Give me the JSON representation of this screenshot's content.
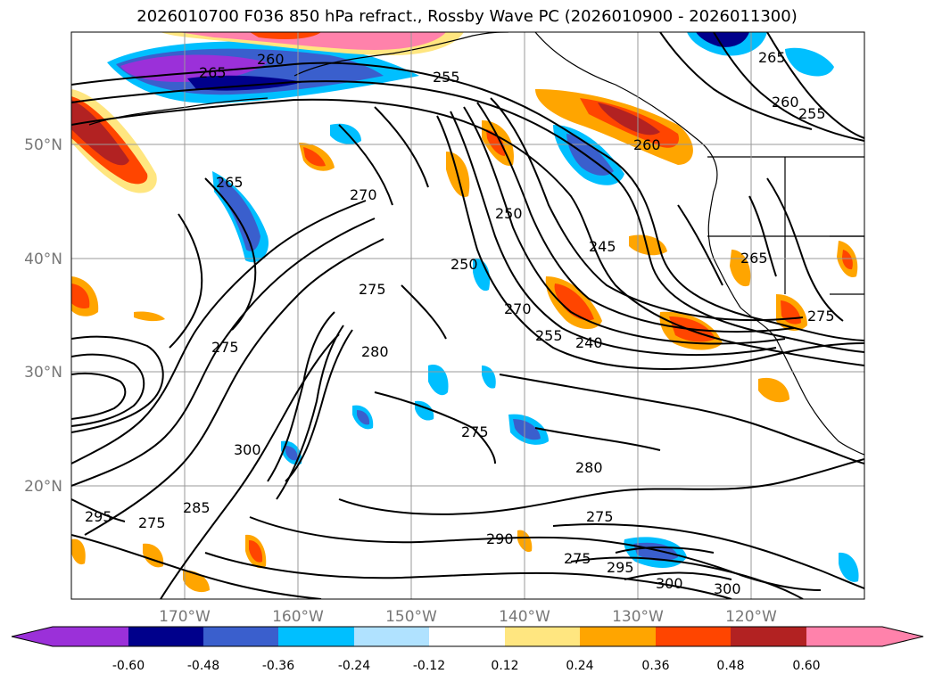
{
  "title": "2026010700 F036 850 hPa refract., Rossby Wave PC (2026010900 - 2026011300)",
  "map": {
    "lon_labels": [
      "170°W",
      "160°W",
      "150°W",
      "140°W",
      "130°W",
      "120°W"
    ],
    "lat_labels": [
      "50°N",
      "40°N",
      "30°N",
      "20°N"
    ],
    "contour_labels": [
      "265",
      "260",
      "255",
      "265",
      "260",
      "255",
      "270",
      "265",
      "250",
      "245",
      "250",
      "275",
      "280",
      "275",
      "270",
      "255",
      "240",
      "275",
      "280",
      "275",
      "300",
      "290",
      "275",
      "295",
      "300",
      "300",
      "295",
      "275",
      "285",
      "260",
      "265",
      "275"
    ]
  },
  "colorbar": {
    "tick_labels": [
      "-0.60",
      "-0.48",
      "-0.36",
      "-0.24",
      "-0.12",
      "0.12",
      "0.24",
      "0.36",
      "0.48",
      "0.60"
    ],
    "colors": [
      "#9b30d9",
      "#00008b",
      "#3a5fcd",
      "#00bfff",
      "#b0e2ff",
      "#ffffff",
      "#ffe680",
      "#ffa500",
      "#ff4500",
      "#b22222",
      "#ff82ab"
    ]
  }
}
